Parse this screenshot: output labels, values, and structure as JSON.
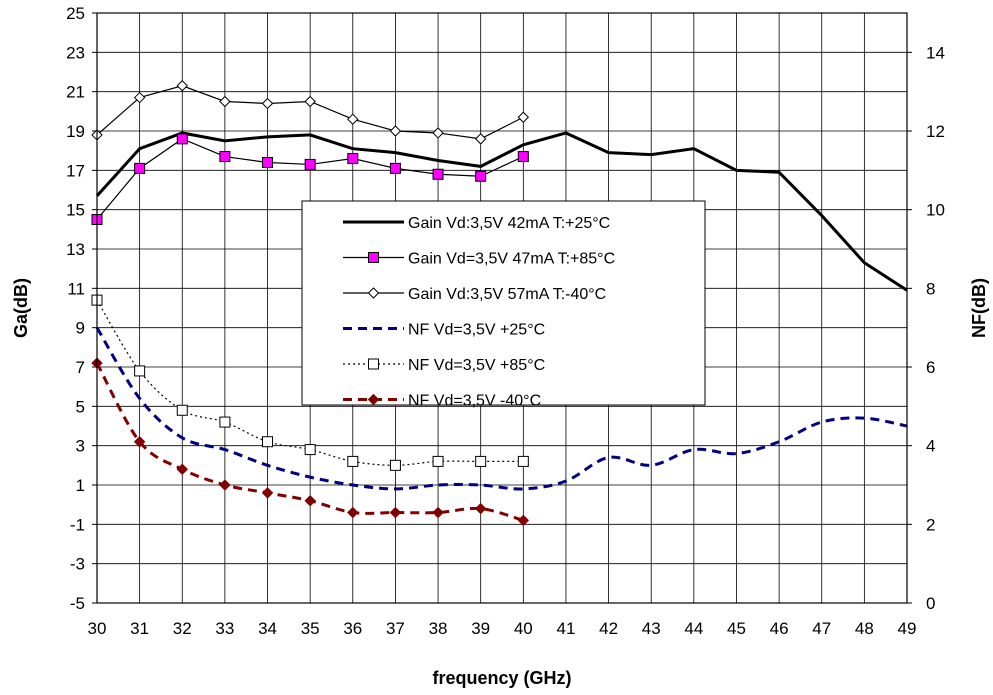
{
  "chart_data": {
    "type": "line",
    "x": [
      30,
      31,
      32,
      33,
      34,
      35,
      36,
      37,
      38,
      39,
      40,
      41,
      42,
      43,
      44,
      45,
      46,
      47,
      48,
      49
    ],
    "xlabel": "frequency (GHz)",
    "ylabel": "Ga(dB)",
    "ylabel_right": "NF(dB)",
    "xlim": [
      30,
      49
    ],
    "ylim": [
      -5,
      25
    ],
    "ylim_right": [
      0,
      15
    ],
    "x_ticks": [
      "30",
      "31",
      "32",
      "33",
      "34",
      "35",
      "36",
      "37",
      "38",
      "39",
      "40",
      "41",
      "42",
      "43",
      "44",
      "45",
      "46",
      "47",
      "48",
      "49"
    ],
    "y_ticks": [
      "-5",
      "-3",
      "-1",
      "1",
      "3",
      "5",
      "7",
      "9",
      "11",
      "13",
      "15",
      "17",
      "19",
      "21",
      "23",
      "25"
    ],
    "y_ticks_right": [
      "0",
      "2",
      "4",
      "6",
      "8",
      "10",
      "12",
      "14"
    ],
    "grid": true,
    "legend_position": "center",
    "series": [
      {
        "name": "Gain Vd:3,5V  42mA  T:+25°C",
        "axis": "left",
        "color": "#000000",
        "style": "solid-thick",
        "marker": "none",
        "x": [
          30,
          31,
          32,
          33,
          34,
          35,
          36,
          37,
          38,
          39,
          40,
          41,
          42,
          43,
          44,
          45,
          46,
          47,
          48,
          49
        ],
        "values": [
          15.7,
          18.1,
          18.9,
          18.5,
          18.7,
          18.8,
          18.1,
          17.9,
          17.5,
          17.2,
          18.3,
          18.9,
          17.9,
          17.8,
          18.1,
          17.0,
          16.9,
          14.7,
          12.3,
          10.9
        ]
      },
      {
        "name": "Gain Vd=3,5V 47mA  T:+85°C",
        "axis": "left",
        "color": "#000000",
        "marker_fill": "#ff00ff",
        "style": "solid",
        "marker": "square",
        "x": [
          30,
          31,
          32,
          33,
          34,
          35,
          36,
          37,
          38,
          39,
          40
        ],
        "values": [
          14.5,
          17.1,
          18.6,
          17.7,
          17.4,
          17.3,
          17.6,
          17.1,
          16.8,
          16.7,
          17.7
        ]
      },
      {
        "name": "Gain Vd:3,5V  57mA  T:-40°C",
        "axis": "left",
        "color": "#000000",
        "style": "solid",
        "marker": "diamond",
        "x": [
          30,
          31,
          32,
          33,
          34,
          35,
          36,
          37,
          38,
          39,
          40
        ],
        "values": [
          18.8,
          20.7,
          21.3,
          20.5,
          20.4,
          20.5,
          19.6,
          19.0,
          18.9,
          18.6,
          19.7
        ]
      },
      {
        "name": "NF Vd=3,5V +25°C",
        "axis": "right",
        "color": "#000080",
        "style": "dashed",
        "marker": "none",
        "x": [
          30,
          31,
          32,
          33,
          34,
          35,
          36,
          37,
          38,
          39,
          40,
          41,
          42,
          43,
          44,
          45,
          46,
          47,
          48,
          49
        ],
        "values": [
          7.0,
          5.2,
          4.2,
          3.9,
          3.5,
          3.2,
          3.0,
          2.9,
          3.0,
          3.0,
          2.9,
          3.1,
          3.7,
          3.5,
          3.9,
          3.8,
          4.1,
          4.6,
          4.7,
          4.5
        ]
      },
      {
        "name": "NF Vd=3,5V +85°C",
        "axis": "right",
        "color": "#000000",
        "style": "dotted",
        "marker": "open-square",
        "x": [
          30,
          31,
          32,
          33,
          34,
          35,
          36,
          37,
          38,
          39,
          40
        ],
        "values": [
          7.7,
          5.9,
          4.9,
          4.6,
          4.1,
          3.9,
          3.6,
          3.5,
          3.6,
          3.6,
          3.6
        ]
      },
      {
        "name": "NF Vd=3,5V -40°C",
        "axis": "right",
        "color": "#800000",
        "style": "dashed",
        "marker": "diamond",
        "x": [
          30,
          31,
          32,
          33,
          34,
          35,
          36,
          37,
          38,
          39,
          40
        ],
        "values": [
          6.1,
          4.1,
          3.4,
          3.0,
          2.8,
          2.6,
          2.3,
          2.3,
          2.3,
          2.4,
          2.1
        ]
      }
    ]
  }
}
